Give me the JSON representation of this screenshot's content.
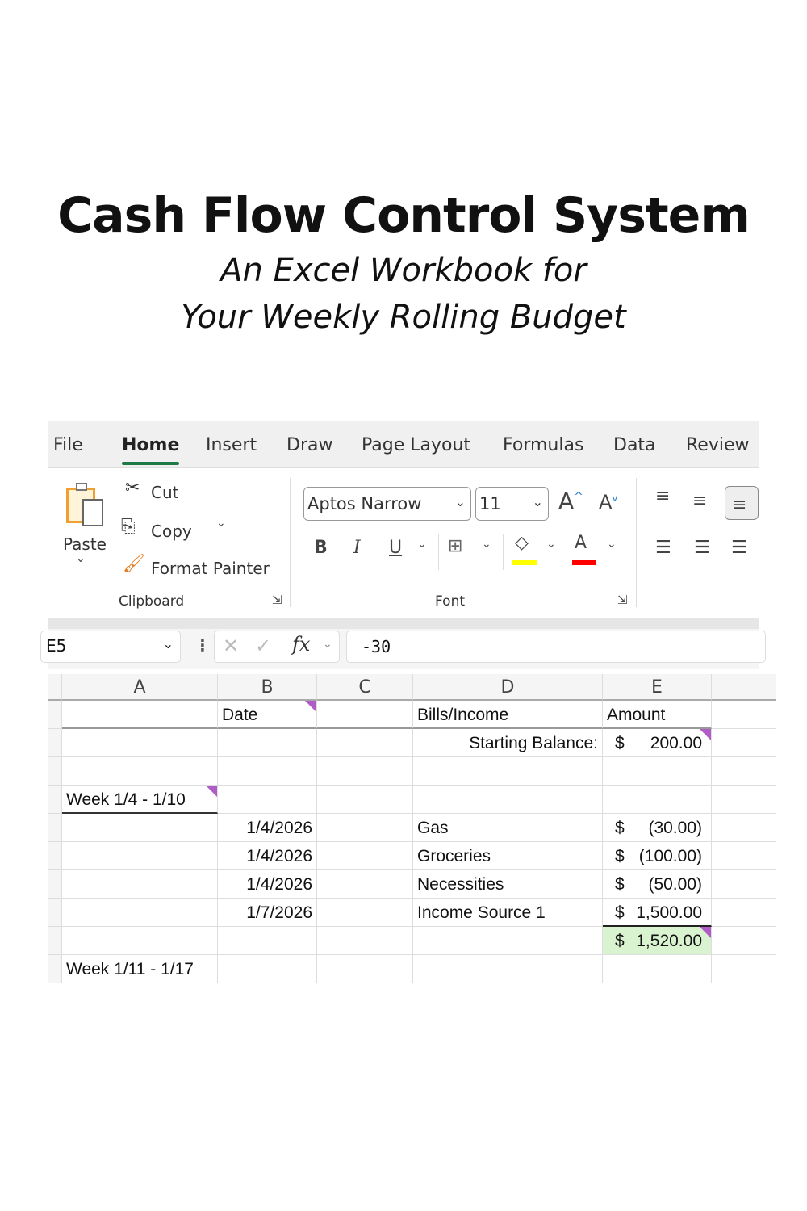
{
  "title": "Cash Flow Control System",
  "subtitle_line1": "An Excel Workbook for",
  "subtitle_line2": "Your Weekly Rolling Budget",
  "tabs": [
    "File",
    "Home",
    "Insert",
    "Draw",
    "Page Layout",
    "Formulas",
    "Data",
    "Review"
  ],
  "active_tab": "Home",
  "clipboard": {
    "paste": "Paste",
    "cut": "Cut",
    "copy": "Copy",
    "format_painter": "Format Painter",
    "group": "Clipboard"
  },
  "font": {
    "name": "Aptos Narrow",
    "size": "11",
    "group": "Font",
    "bold": "B",
    "italic": "I",
    "underline": "U",
    "fill_color": "#ffff00",
    "font_color": "#ff0000"
  },
  "formula_bar": {
    "name_box": "E5",
    "fx": "fx",
    "value": "-30"
  },
  "columns": [
    "A",
    "B",
    "C",
    "D",
    "E"
  ],
  "rows": [
    {
      "a": "",
      "b": "Date",
      "c": "",
      "d": "Bills/Income",
      "e_sym": "",
      "e": "Amount"
    },
    {
      "a": "",
      "b": "",
      "c": "",
      "d": "Starting Balance:",
      "e_sym": "$",
      "e": "200.00"
    },
    {
      "a": "",
      "b": "",
      "c": "",
      "d": "",
      "e_sym": "",
      "e": ""
    },
    {
      "a": "Week 1/4 - 1/10",
      "b": "",
      "c": "",
      "d": "",
      "e_sym": "",
      "e": ""
    },
    {
      "a": "",
      "b": "1/4/2026",
      "c": "",
      "d": "Gas",
      "e_sym": "$",
      "e": "(30.00)"
    },
    {
      "a": "",
      "b": "1/4/2026",
      "c": "",
      "d": "Groceries",
      "e_sym": "$",
      "e": "(100.00)"
    },
    {
      "a": "",
      "b": "1/4/2026",
      "c": "",
      "d": "Necessities",
      "e_sym": "$",
      "e": "(50.00)"
    },
    {
      "a": "",
      "b": "1/7/2026",
      "c": "",
      "d": "Income Source 1",
      "e_sym": "$",
      "e": "1,500.00"
    },
    {
      "a": "",
      "b": "",
      "c": "",
      "d": "",
      "e_sym": "$",
      "e": "1,520.00"
    },
    {
      "a": "Week 1/11 - 1/17",
      "b": "",
      "c": "",
      "d": "",
      "e_sym": "",
      "e": ""
    }
  ],
  "colors": {
    "total_fill": "#d9f2d0",
    "comment_marker": "#b05cc6",
    "home_underline": "#1e7b45"
  }
}
